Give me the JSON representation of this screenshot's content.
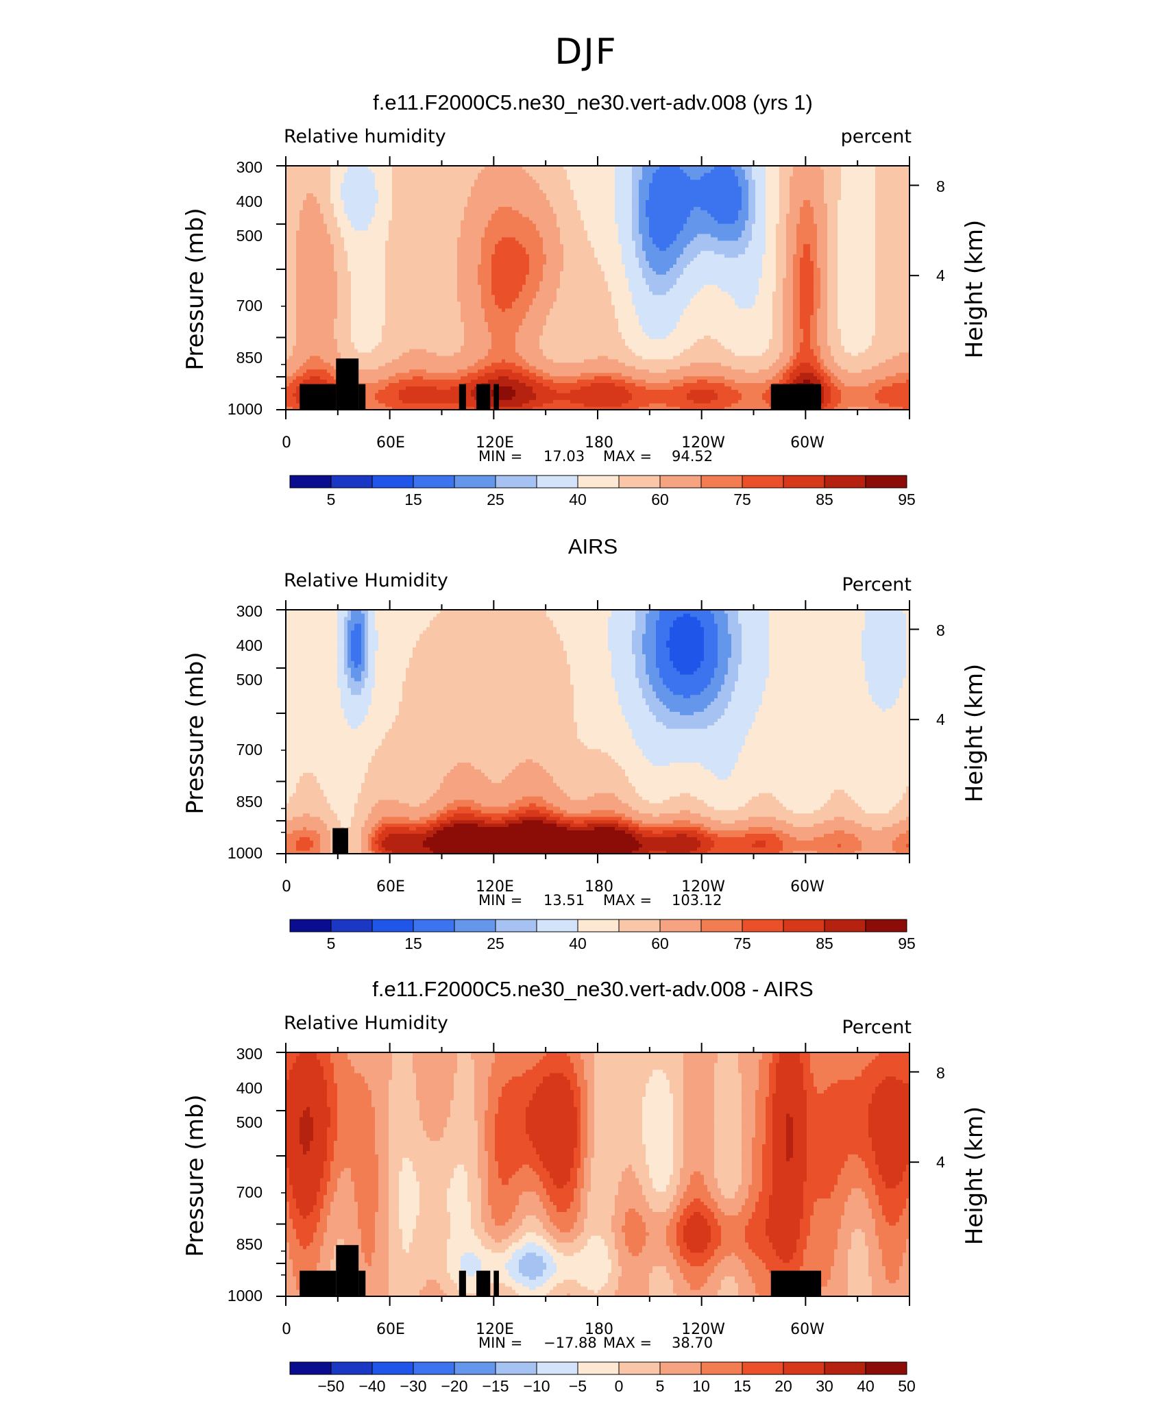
{
  "figure": {
    "title": "DJF"
  },
  "panels": [
    {
      "title": "f.e11.F2000C5.ne30_ne30.vert-adv.008 (yrs 1)",
      "left_label": "Relative humidity",
      "right_label": "percent",
      "min_label": "MIN =",
      "min_value": "17.03",
      "max_label": "MAX =",
      "max_value": "94.52",
      "colorbar_ticks": [
        "5",
        "15",
        "25",
        "40",
        "60",
        "75",
        "85",
        "95"
      ],
      "colors": [
        "#0a0d8f",
        "#1b38c4",
        "#1f55e8",
        "#3c74f0",
        "#6497ec",
        "#a5c2f2",
        "#d3e3f9",
        "#fde8d3",
        "#f9c6a8",
        "#f6a381",
        "#f37d52",
        "#ea5029",
        "#d7381a",
        "#b52210",
        "#8c0c07"
      ]
    },
    {
      "title": "AIRS",
      "left_label": "Relative Humidity",
      "right_label": "Percent",
      "min_label": "MIN =",
      "min_value": "13.51",
      "max_label": "MAX =",
      "max_value": "103.12",
      "colorbar_ticks": [
        "5",
        "15",
        "25",
        "40",
        "60",
        "75",
        "85",
        "95"
      ],
      "colors": [
        "#0a0d8f",
        "#1b38c4",
        "#1f55e8",
        "#3c74f0",
        "#6497ec",
        "#a5c2f2",
        "#d3e3f9",
        "#fde8d3",
        "#f9c6a8",
        "#f6a381",
        "#f37d52",
        "#ea5029",
        "#d7381a",
        "#b52210",
        "#8c0c07"
      ]
    },
    {
      "title": "f.e11.F2000C5.ne30_ne30.vert-adv.008 - AIRS",
      "left_label": "Relative Humidity",
      "right_label": "Percent",
      "min_label": "MIN =",
      "min_value": "−17.88",
      "max_label": "MAX =",
      "max_value": "38.70",
      "colorbar_ticks": [
        "−50",
        "−40",
        "−30",
        "−20",
        "−15",
        "−10",
        "−5",
        "0",
        "5",
        "10",
        "15",
        "20",
        "30",
        "40",
        "50"
      ],
      "colors": [
        "#0a0d8f",
        "#1b38c4",
        "#1f55e8",
        "#3c74f0",
        "#6497ec",
        "#a5c2f2",
        "#d3e3f9",
        "#fde8d3",
        "#f9c6a8",
        "#f6a381",
        "#f37d52",
        "#ea5029",
        "#d7381a",
        "#b52210",
        "#8c0c07"
      ]
    }
  ],
  "axes": {
    "y_label": "Pressure (mb)",
    "y_ticks": [
      "300",
      "400",
      "500",
      "700",
      "850",
      "1000"
    ],
    "x_ticks": [
      "0",
      "60E",
      "120E",
      "180",
      "120W",
      "60W"
    ],
    "y2_label": "Height (km)",
    "y2_ticks": [
      "8",
      "4"
    ]
  },
  "chart_data": [
    {
      "type": "heatmap",
      "title": "f.e11.F2000C5.ne30_ne30.vert-adv.008 (yrs 1)",
      "variable": "Relative humidity",
      "units": "percent",
      "x_ticks": [
        "0",
        "60E",
        "120E",
        "180",
        "120W",
        "60W"
      ],
      "y_ticks_pressure_mb": [
        300,
        400,
        500,
        700,
        850,
        1000
      ],
      "y2_ticks_height_km": [
        8,
        4
      ],
      "ylim_mb": [
        1000,
        300
      ],
      "levels": [
        5,
        10,
        15,
        20,
        25,
        30,
        40,
        50,
        60,
        70,
        75,
        80,
        85,
        90,
        95
      ],
      "min": 17.03,
      "max": 94.52,
      "grid": false
    },
    {
      "type": "heatmap",
      "title": "AIRS",
      "variable": "Relative Humidity",
      "units": "Percent",
      "x_ticks": [
        "0",
        "60E",
        "120E",
        "180",
        "120W",
        "60W"
      ],
      "y_ticks_pressure_mb": [
        300,
        400,
        500,
        700,
        850,
        1000
      ],
      "y2_ticks_height_km": [
        8,
        4
      ],
      "ylim_mb": [
        1000,
        300
      ],
      "levels": [
        5,
        10,
        15,
        20,
        25,
        30,
        40,
        50,
        60,
        70,
        75,
        80,
        85,
        90,
        95
      ],
      "min": 13.51,
      "max": 103.12,
      "grid": false
    },
    {
      "type": "heatmap",
      "title": "f.e11.F2000C5.ne30_ne30.vert-adv.008 - AIRS",
      "variable": "Relative Humidity",
      "units": "Percent",
      "x_ticks": [
        "0",
        "60E",
        "120E",
        "180",
        "120W",
        "60W"
      ],
      "y_ticks_pressure_mb": [
        300,
        400,
        500,
        700,
        850,
        1000
      ],
      "y2_ticks_height_km": [
        8,
        4
      ],
      "ylim_mb": [
        1000,
        300
      ],
      "levels": [
        -50,
        -40,
        -30,
        -20,
        -15,
        -10,
        -5,
        0,
        5,
        10,
        15,
        20,
        30,
        40,
        50
      ],
      "min": -17.88,
      "max": 38.7,
      "grid": false
    }
  ]
}
